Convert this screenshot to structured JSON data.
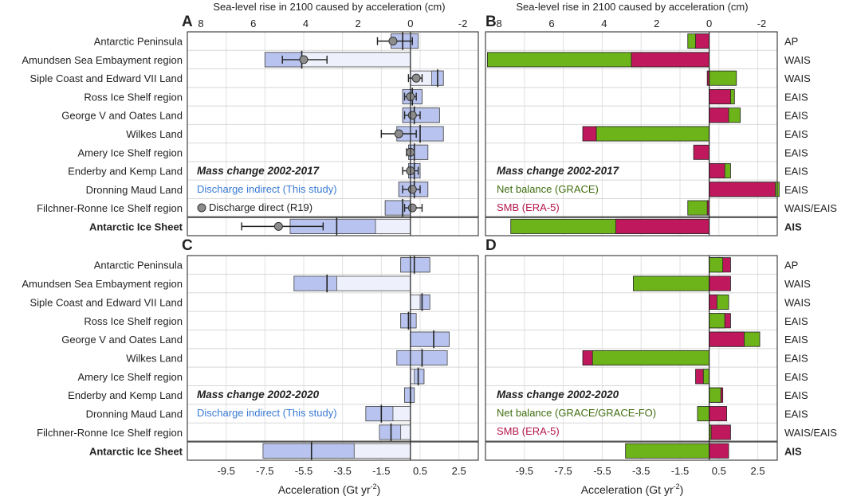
{
  "figure": {
    "top_axis_label": "Sea-level rise in 2100 caused by acceleration (cm)",
    "bottom_axis_label": "Acceleration (Gt yr",
    "bottom_axis_exp": "-2",
    "bottom_axis_close": ")",
    "panel_letters": [
      "A",
      "B",
      "C",
      "D"
    ],
    "regions": [
      "Antarctic Peninsula",
      "Amundsen Sea Embayment region",
      "Siple Coast and Edward VII Land",
      "Ross Ice Shelf region",
      "George V and Oates Land",
      "Wilkes Land",
      "Amery Ice Shelf region",
      "Enderby and Kemp Land",
      "Dronning Maud Land",
      "Filchner-Ronne Ice Shelf region",
      "Antarctic Ice Sheet"
    ],
    "basins": [
      "AP",
      "WAIS",
      "WAIS",
      "EAIS",
      "EAIS",
      "EAIS",
      "EAIS",
      "EAIS",
      "EAIS",
      "WAIS/EAIS",
      "AIS"
    ],
    "colors": {
      "indirect_dark": "#b8c4ef",
      "indirect_light": "#eef0fb",
      "indirect_text": "#3a7bd5",
      "grace": "#6db31a",
      "grace_text": "#3f6e10",
      "smb": "#c0185c",
      "smb_text": "#b3164f",
      "direct": "#8c8c8c"
    }
  },
  "legend": {
    "title_2017": "Mass change 2002-2017",
    "title_2020": "Mass change 2002-2020",
    "discharge_indirect": "Discharge indirect (This study)",
    "discharge_direct": "Discharge direct (R19)",
    "net_balance_2017": "Net balance (GRACE)",
    "net_balance_2020": "Net balance (GRACE/GRACE-FO)",
    "smb": "SMB (ERA-5)"
  },
  "chart_data": [
    {
      "panel": "A",
      "type": "bar",
      "orientation": "horizontal",
      "title": "Mass change 2002-2017",
      "xlabel": "Acceleration (Gt yr-2)",
      "xlim": [
        -11.5,
        3.5
      ],
      "secondary_xlabel": "Sea-level rise in 2100 caused by acceleration (cm)",
      "secondary_ticks": [
        "8",
        "6",
        "4",
        "2",
        "0",
        "-2"
      ],
      "categories": [
        "Antarctic Peninsula",
        "Amundsen Sea Embayment region",
        "Siple Coast and Edward VII Land",
        "Ross Ice Shelf region",
        "George V and Oates Land",
        "Wilkes Land",
        "Amery Ice Shelf region",
        "Enderby and Kemp Land",
        "Dronning Maud Land",
        "Filchner-Ronne Ice Shelf region",
        "Antarctic Ice Sheet"
      ],
      "series": [
        {
          "name": "Discharge indirect (This study)",
          "mean": [
            -0.4,
            -5.6,
            1.4,
            0.1,
            0.2,
            0.5,
            0.2,
            0.2,
            0.2,
            -0.4,
            -3.8
          ],
          "range_low": [
            -1.0,
            -7.5,
            0.0,
            -0.4,
            -0.4,
            -0.7,
            -0.1,
            -0.1,
            -0.6,
            -1.3,
            -6.2
          ],
          "range_high": [
            0.4,
            0.0,
            1.7,
            0.6,
            1.5,
            1.7,
            0.9,
            0.5,
            0.9,
            0.0,
            0.0
          ],
          "dark_low": [
            -1.0,
            -7.5,
            1.1,
            -0.4,
            -0.4,
            -0.7,
            -0.1,
            -0.1,
            -0.6,
            -1.3,
            -6.2
          ],
          "dark_high": [
            0.4,
            -5.6,
            1.7,
            0.6,
            1.5,
            1.7,
            0.9,
            0.5,
            0.9,
            0.0,
            -1.8
          ]
        },
        {
          "name": "Discharge direct (R19)",
          "values": [
            -0.9,
            -5.5,
            0.3,
            0.0,
            0.1,
            -0.6,
            0.0,
            0.0,
            0.1,
            0.1,
            -6.8
          ],
          "err_low": [
            -1.7,
            -6.6,
            -0.1,
            -0.3,
            -0.3,
            -1.5,
            -0.2,
            -0.4,
            -0.4,
            -0.3,
            -8.7
          ],
          "err_high": [
            0.1,
            -4.3,
            0.6,
            0.3,
            0.5,
            0.3,
            0.2,
            0.4,
            0.5,
            0.6,
            -4.5
          ]
        }
      ]
    },
    {
      "panel": "B",
      "type": "bar",
      "orientation": "horizontal",
      "title": "Mass change 2002-2017",
      "xlabel": "Acceleration (Gt yr-2)",
      "xlim": [
        -11.5,
        3.5
      ],
      "categories": [
        "Antarctic Peninsula",
        "Amundsen Sea Embayment region",
        "Siple Coast and Edward VII Land",
        "Ross Ice Shelf region",
        "George V and Oates Land",
        "Wilkes Land",
        "Amery Ice Shelf region",
        "Enderby and Kemp Land",
        "Dronning Maud Land",
        "Filchner-Ronne Ice Shelf region",
        "Antarctic Ice Sheet"
      ],
      "series": [
        {
          "name": "Net balance (GRACE)",
          "values": [
            -1.1,
            -11.4,
            1.4,
            1.3,
            1.6,
            -5.8,
            0.0,
            1.1,
            3.6,
            -1.1,
            -10.2
          ]
        },
        {
          "name": "SMB (ERA-5)",
          "values": [
            -0.7,
            -4.0,
            -0.1,
            1.1,
            1.0,
            -6.5,
            -0.8,
            0.8,
            3.4,
            -0.1,
            -4.8
          ]
        }
      ]
    },
    {
      "panel": "C",
      "type": "bar",
      "orientation": "horizontal",
      "title": "Mass change 2002-2020",
      "xlabel": "Acceleration (Gt yr-2)",
      "xlim": [
        -11.5,
        3.5
      ],
      "categories": [
        "Antarctic Peninsula",
        "Amundsen Sea Embayment region",
        "Siple Coast and Edward VII Land",
        "Ross Ice Shelf region",
        "George V and Oates Land",
        "Wilkes Land",
        "Amery Ice Shelf region",
        "Enderby and Kemp Land",
        "Dronning Maud Land",
        "Filchner-Ronne Ice Shelf region",
        "Antarctic Ice Sheet"
      ],
      "series": [
        {
          "name": "Discharge indirect (This study)",
          "mean": [
            0.2,
            -4.3,
            0.6,
            -0.1,
            1.2,
            0.6,
            0.4,
            0.0,
            -1.5,
            -1.0,
            -5.1
          ],
          "range_low": [
            -0.5,
            -6.0,
            0.0,
            -0.5,
            0.0,
            -0.7,
            0.0,
            -0.3,
            -2.3,
            -1.6,
            -7.6
          ],
          "range_high": [
            1.0,
            0.0,
            1.0,
            0.3,
            2.0,
            1.9,
            0.7,
            0.2,
            0.0,
            0.0,
            0.0
          ],
          "dark_low": [
            -0.5,
            -6.0,
            0.5,
            -0.5,
            0.0,
            -0.7,
            0.2,
            -0.3,
            -2.3,
            -1.6,
            -7.6
          ],
          "dark_high": [
            1.0,
            -3.8,
            1.0,
            0.3,
            2.0,
            1.9,
            0.7,
            0.2,
            -0.9,
            -0.5,
            -2.9
          ]
        }
      ]
    },
    {
      "panel": "D",
      "type": "bar",
      "orientation": "horizontal",
      "title": "Mass change 2002-2020",
      "xlabel": "Acceleration (Gt yr-2)",
      "xlim": [
        -11.5,
        3.5
      ],
      "categories": [
        "Antarctic Peninsula",
        "Amundsen Sea Embayment region",
        "Siple Coast and Edward VII Land",
        "Ross Ice Shelf region",
        "George V and Oates Land",
        "Wilkes Land",
        "Amery Ice Shelf region",
        "Enderby and Kemp Land",
        "Dronning Maud Land",
        "Filchner-Ronne Ice Shelf region",
        "Antarctic Ice Sheet"
      ],
      "series": [
        {
          "name": "Net balance (GRACE/GRACE-FO)",
          "values": [
            0.7,
            -3.9,
            1.0,
            0.8,
            2.6,
            -6.0,
            -0.3,
            0.6,
            -0.6,
            0.1,
            -4.3
          ]
        },
        {
          "name": "SMB (ERA-5)",
          "values": [
            1.1,
            1.1,
            0.4,
            1.1,
            1.8,
            -6.5,
            -0.7,
            0.7,
            0.9,
            1.1,
            1.0
          ]
        }
      ]
    }
  ],
  "x_ticks": [
    -9.5,
    -7.5,
    -5.5,
    -3.5,
    -1.5,
    0.5,
    2.5
  ],
  "x_tick_labels": [
    "-9.5",
    "-7.5",
    "-5.5",
    "-3.5",
    "-1.5",
    "0.5",
    "2.5"
  ]
}
